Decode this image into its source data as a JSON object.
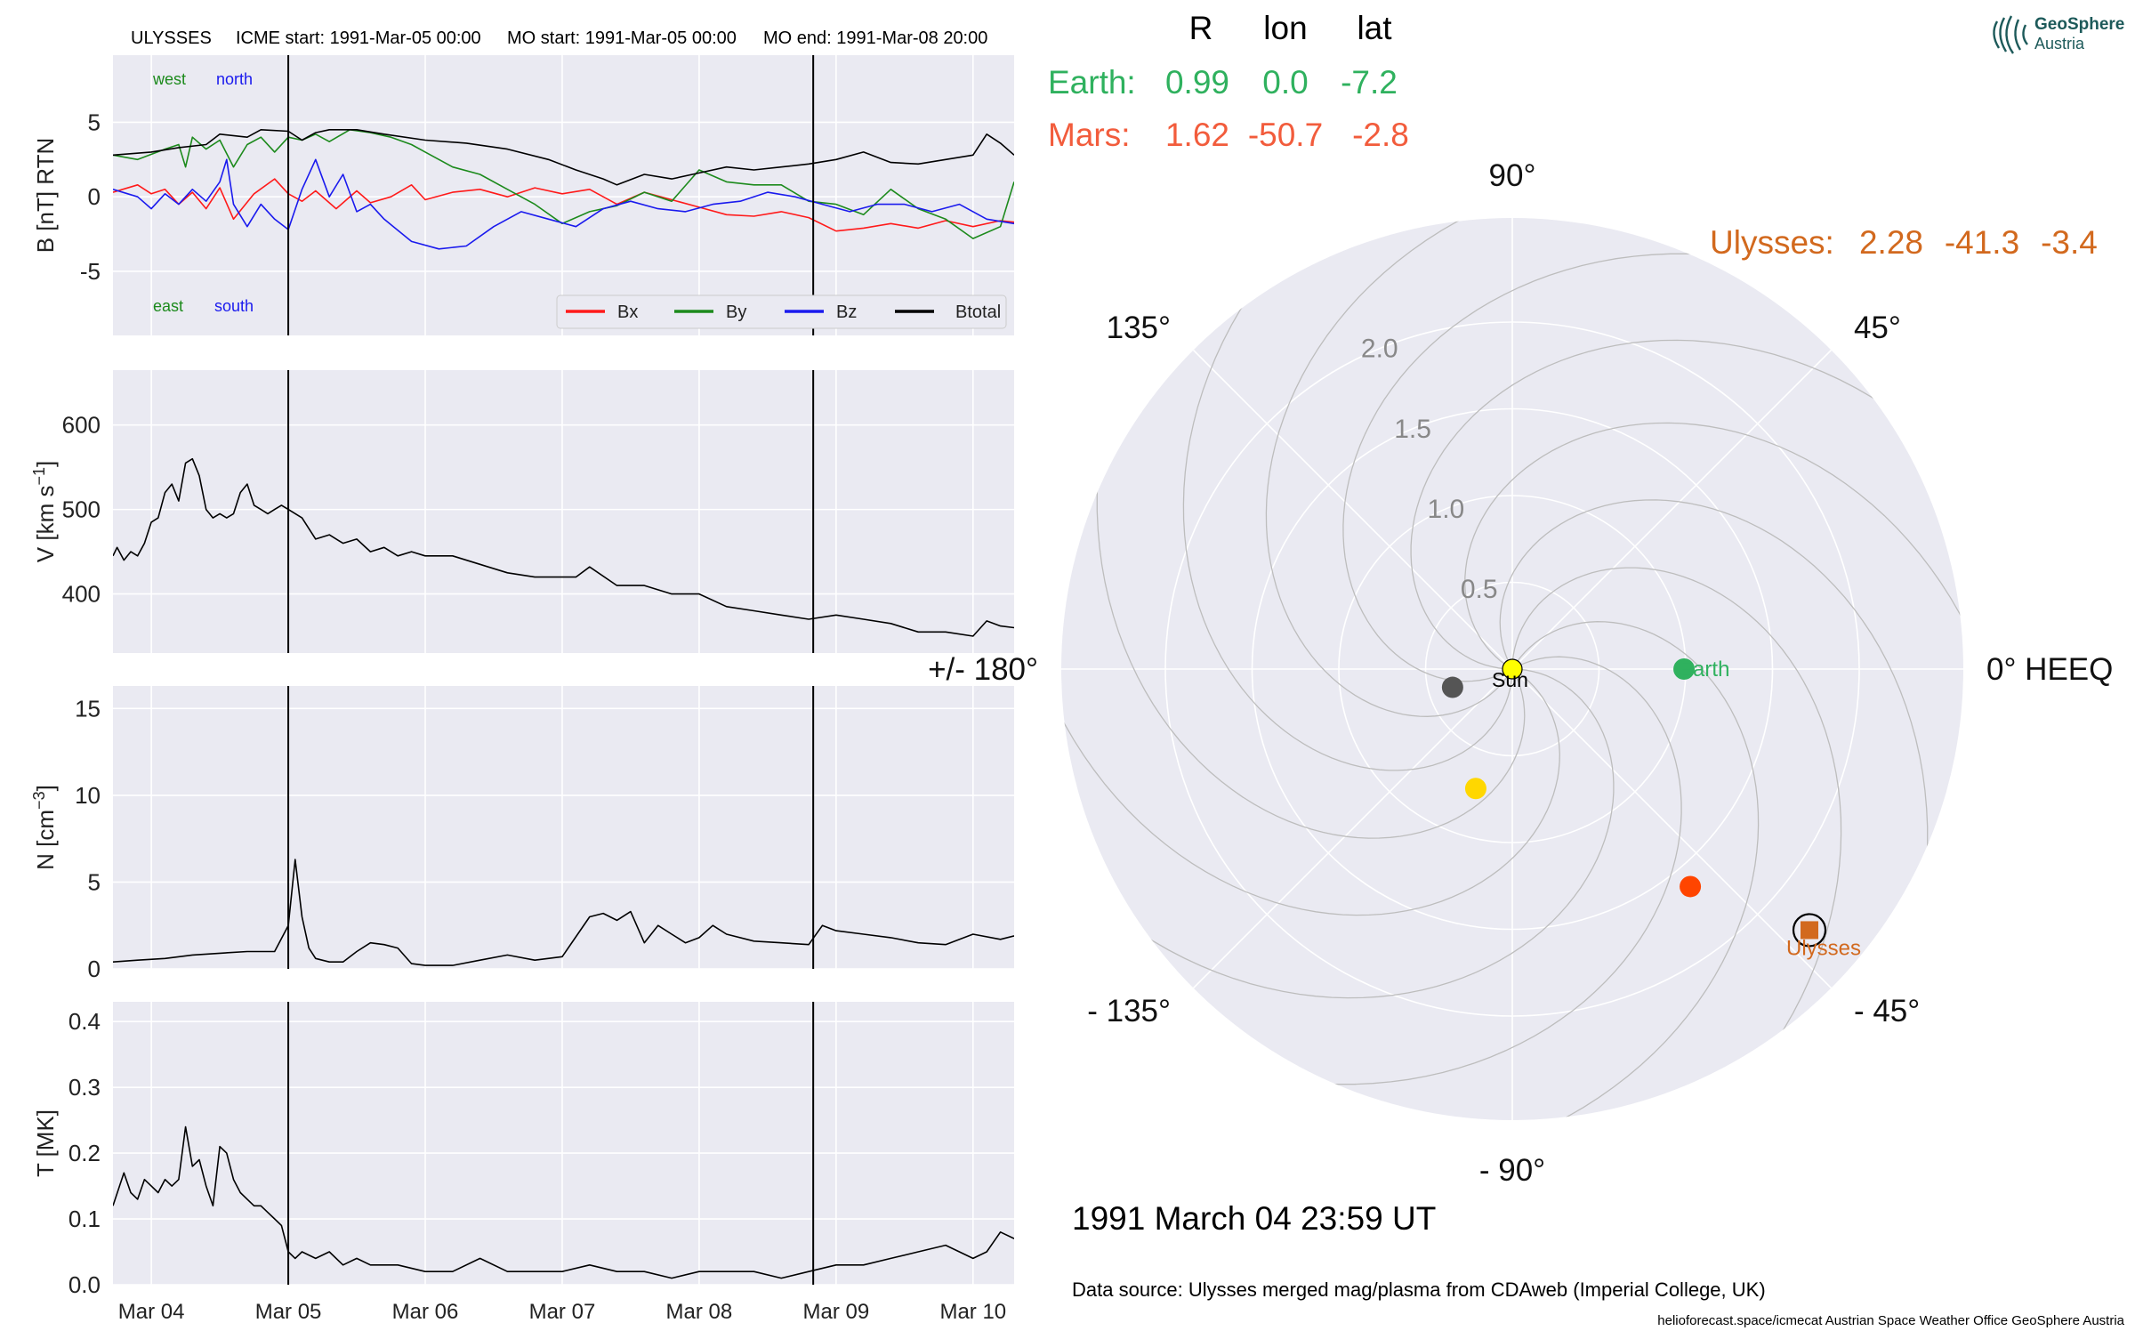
{
  "header": {
    "spacecraft": "ULYSSES",
    "icme_start": "ICME start: 1991-Mar-05 00:00",
    "mo_start": "MO start: 1991-Mar-05 00:00",
    "mo_end": "MO end: 1991-Mar-08 20:00"
  },
  "position_table": {
    "columns": [
      "R",
      "lon",
      "lat"
    ],
    "rows": [
      {
        "name": "Earth:",
        "R": "0.99",
        "lon": "0.0",
        "lat": "-7.2",
        "color": "#2fb15e"
      },
      {
        "name": "Mars:",
        "R": "1.62",
        "lon": "-50.7",
        "lat": "-2.8",
        "color": "#f25c3c"
      }
    ],
    "spacecraft_row": {
      "name": "Ulysses:",
      "R": "2.28",
      "lon": "-41.3",
      "lat": "-3.4",
      "color": "#d2691e"
    }
  },
  "logo": {
    "line1": "GeoSphere",
    "line2": "Austria"
  },
  "timestamp": "1991 March 04  23:59 UT",
  "data_source": "Data source: Ulysses merged mag/plasma from CDAweb (Imperial College, UK)",
  "footer": "helioforecast.space/icmecat   Austrian Space Weather Office   GeoSphere Austria",
  "colors": {
    "panel_bg": "#eaeaf2",
    "grid": "#ffffff",
    "bx": "#ff1a1a",
    "by": "#1c8a1c",
    "bz": "#1a1aee",
    "btotal": "#000000"
  },
  "chart_data": [
    {
      "type": "line",
      "ylabel": "B [nT] RTN",
      "yticks": [
        -5,
        0,
        5
      ],
      "ylim": [
        -9.3,
        9.5
      ],
      "xlim": [
        3.72,
        10.3
      ],
      "xticks": [
        4,
        5,
        6,
        7,
        8,
        9,
        10
      ],
      "xtick_labels": [
        "Mar 04",
        "Mar 05",
        "Mar 06",
        "Mar 07",
        "Mar 08",
        "Mar 09",
        "Mar 10"
      ],
      "vlines": [
        5.0,
        8.833
      ],
      "corner_labels": [
        {
          "text": "west",
          "color": "#1c8a1c",
          "pos": "top-left"
        },
        {
          "text": "north",
          "color": "#1a1aee",
          "pos": "top-left"
        },
        {
          "text": "east",
          "color": "#1c8a1c",
          "pos": "bottom-left"
        },
        {
          "text": "south",
          "color": "#1a1aee",
          "pos": "bottom-left"
        }
      ],
      "legend": [
        "Bx",
        "By",
        "Bz",
        "Btotal"
      ],
      "legend_position": "lower-right",
      "grid": true,
      "series": [
        {
          "name": "Bx",
          "color": "#ff1a1a",
          "x": [
            3.72,
            3.9,
            4.0,
            4.1,
            4.2,
            4.3,
            4.4,
            4.5,
            4.6,
            4.75,
            4.9,
            5.0,
            5.1,
            5.2,
            5.35,
            5.5,
            5.6,
            5.75,
            5.9,
            6.0,
            6.2,
            6.4,
            6.6,
            6.8,
            7.0,
            7.2,
            7.4,
            7.6,
            7.8,
            8.0,
            8.2,
            8.4,
            8.6,
            8.8,
            9.0,
            9.2,
            9.4,
            9.6,
            9.8,
            10.0,
            10.2,
            10.3
          ],
          "y": [
            0.3,
            0.8,
            0.2,
            0.5,
            -0.5,
            0.3,
            -0.8,
            0.6,
            -1.5,
            0.2,
            1.2,
            0.2,
            -0.3,
            0.4,
            -0.8,
            0.4,
            -0.4,
            0.0,
            0.8,
            -0.2,
            0.3,
            0.5,
            0.0,
            0.6,
            0.2,
            0.5,
            -0.5,
            0.3,
            -0.2,
            -0.7,
            -1.2,
            -1.3,
            -1.0,
            -1.4,
            -2.3,
            -2.1,
            -1.8,
            -2.1,
            -1.6,
            -2.0,
            -1.6,
            -1.7
          ]
        },
        {
          "name": "By",
          "color": "#1c8a1c",
          "x": [
            3.72,
            3.9,
            4.1,
            4.2,
            4.25,
            4.3,
            4.4,
            4.5,
            4.6,
            4.7,
            4.8,
            4.9,
            5.0,
            5.1,
            5.2,
            5.3,
            5.45,
            5.6,
            5.75,
            5.9,
            6.0,
            6.2,
            6.4,
            6.6,
            6.8,
            7.0,
            7.2,
            7.4,
            7.6,
            7.8,
            8.0,
            8.2,
            8.4,
            8.6,
            8.8,
            9.0,
            9.2,
            9.4,
            9.6,
            9.8,
            10.0,
            10.2,
            10.3
          ],
          "y": [
            2.8,
            2.5,
            3.2,
            3.5,
            2.0,
            4.0,
            3.2,
            3.8,
            2.0,
            3.5,
            4.0,
            3.0,
            4.0,
            3.8,
            4.2,
            3.7,
            4.5,
            4.3,
            4.0,
            3.5,
            3.0,
            2.0,
            1.5,
            0.5,
            -0.5,
            -1.8,
            -1.0,
            -0.6,
            0.3,
            -0.3,
            1.8,
            1.0,
            0.8,
            0.8,
            -0.3,
            -0.5,
            -1.2,
            0.5,
            -0.8,
            -1.5,
            -2.8,
            -2.0,
            1.0
          ]
        },
        {
          "name": "Bz",
          "color": "#1a1aee",
          "x": [
            3.72,
            3.9,
            4.0,
            4.1,
            4.2,
            4.3,
            4.4,
            4.5,
            4.55,
            4.6,
            4.7,
            4.8,
            4.9,
            5.0,
            5.1,
            5.2,
            5.3,
            5.4,
            5.5,
            5.6,
            5.7,
            5.9,
            6.1,
            6.3,
            6.5,
            6.7,
            6.9,
            7.1,
            7.3,
            7.5,
            7.7,
            7.9,
            8.1,
            8.3,
            8.5,
            8.7,
            8.9,
            9.1,
            9.3,
            9.5,
            9.7,
            9.9,
            10.1,
            10.3
          ],
          "y": [
            0.5,
            0.0,
            -0.8,
            0.2,
            -0.5,
            0.5,
            -0.3,
            1.0,
            2.5,
            -0.5,
            -2.0,
            -0.5,
            -1.5,
            -2.2,
            0.5,
            2.5,
            0.0,
            1.5,
            -1.0,
            -0.5,
            -1.5,
            -3.0,
            -3.5,
            -3.3,
            -2.0,
            -1.0,
            -1.5,
            -2.0,
            -0.8,
            -0.3,
            -0.8,
            -1.0,
            -0.5,
            -0.3,
            0.3,
            0.0,
            -0.5,
            -1.0,
            -0.5,
            -0.5,
            -1.0,
            -0.5,
            -1.5,
            -1.8
          ]
        },
        {
          "name": "Btotal",
          "color": "#000000",
          "x": [
            3.72,
            4.0,
            4.2,
            4.4,
            4.5,
            4.7,
            4.8,
            5.0,
            5.1,
            5.2,
            5.3,
            5.5,
            5.7,
            6.0,
            6.3,
            6.6,
            6.9,
            7.1,
            7.3,
            7.4,
            7.6,
            7.8,
            8.0,
            8.2,
            8.4,
            8.6,
            8.8,
            9.0,
            9.2,
            9.4,
            9.6,
            9.8,
            10.0,
            10.1,
            10.2,
            10.3
          ],
          "y": [
            2.8,
            3.0,
            3.3,
            3.5,
            4.2,
            4.0,
            4.5,
            4.4,
            3.8,
            4.3,
            4.5,
            4.5,
            4.2,
            3.8,
            3.6,
            3.2,
            2.5,
            1.8,
            1.2,
            0.8,
            1.5,
            1.2,
            1.6,
            2.0,
            1.8,
            2.0,
            2.2,
            2.5,
            3.0,
            2.3,
            2.2,
            2.5,
            2.8,
            4.2,
            3.6,
            2.8
          ]
        }
      ]
    },
    {
      "type": "line",
      "ylabel": "V [km s",
      "ylabel_superscript": "−1",
      "ylabel_close": "]",
      "yticks": [
        400,
        500,
        600
      ],
      "ylim": [
        330,
        665
      ],
      "xlim": [
        3.72,
        10.3
      ],
      "xticks": [
        4,
        5,
        6,
        7,
        8,
        9,
        10
      ],
      "vlines": [
        5.0,
        8.833
      ],
      "grid": true,
      "series": [
        {
          "name": "",
          "color": "#000000",
          "x": [
            3.72,
            3.75,
            3.8,
            3.85,
            3.9,
            3.95,
            4.0,
            4.05,
            4.1,
            4.15,
            4.2,
            4.25,
            4.3,
            4.35,
            4.4,
            4.45,
            4.5,
            4.55,
            4.6,
            4.65,
            4.7,
            4.75,
            4.8,
            4.85,
            4.9,
            4.95,
            5.0,
            5.1,
            5.2,
            5.3,
            5.4,
            5.5,
            5.6,
            5.7,
            5.8,
            5.9,
            6.0,
            6.2,
            6.4,
            6.6,
            6.8,
            7.0,
            7.1,
            7.2,
            7.4,
            7.6,
            7.8,
            8.0,
            8.2,
            8.4,
            8.6,
            8.8,
            9.0,
            9.2,
            9.4,
            9.6,
            9.8,
            10.0,
            10.1,
            10.2,
            10.3
          ],
          "y": [
            445,
            455,
            440,
            450,
            445,
            460,
            485,
            490,
            520,
            530,
            510,
            555,
            560,
            540,
            500,
            490,
            495,
            490,
            495,
            520,
            530,
            505,
            500,
            495,
            500,
            505,
            500,
            490,
            465,
            470,
            460,
            465,
            450,
            455,
            445,
            450,
            445,
            445,
            435,
            425,
            420,
            420,
            420,
            432,
            410,
            410,
            400,
            400,
            385,
            380,
            375,
            370,
            375,
            370,
            365,
            355,
            355,
            350,
            368,
            362,
            360
          ]
        }
      ]
    },
    {
      "type": "line",
      "ylabel": "N [cm",
      "ylabel_superscript": "−3",
      "ylabel_close": "]",
      "yticks": [
        0,
        5,
        10,
        15
      ],
      "ylim": [
        0,
        16.3
      ],
      "xlim": [
        3.72,
        10.3
      ],
      "xticks": [
        4,
        5,
        6,
        7,
        8,
        9,
        10
      ],
      "vlines": [
        5.0,
        8.833
      ],
      "grid": true,
      "series": [
        {
          "name": "",
          "color": "#000000",
          "x": [
            3.72,
            3.9,
            4.1,
            4.3,
            4.5,
            4.7,
            4.9,
            5.0,
            5.05,
            5.1,
            5.15,
            5.2,
            5.3,
            5.4,
            5.5,
            5.6,
            5.7,
            5.8,
            5.9,
            6.0,
            6.2,
            6.4,
            6.6,
            6.8,
            7.0,
            7.2,
            7.3,
            7.4,
            7.5,
            7.6,
            7.7,
            7.8,
            7.9,
            8.0,
            8.1,
            8.2,
            8.4,
            8.6,
            8.8,
            8.9,
            9.0,
            9.2,
            9.4,
            9.6,
            9.8,
            10.0,
            10.2,
            10.3
          ],
          "y": [
            0.4,
            0.5,
            0.6,
            0.8,
            0.9,
            1.0,
            1.0,
            2.5,
            6.3,
            3.0,
            1.2,
            0.6,
            0.4,
            0.4,
            1.0,
            1.5,
            1.4,
            1.2,
            0.3,
            0.2,
            0.2,
            0.5,
            0.8,
            0.5,
            0.7,
            3.0,
            3.2,
            2.8,
            3.3,
            1.5,
            2.5,
            2.0,
            1.5,
            1.8,
            2.5,
            2.0,
            1.6,
            1.5,
            1.4,
            2.5,
            2.2,
            2.0,
            1.8,
            1.5,
            1.4,
            2.0,
            1.7,
            1.9
          ]
        }
      ]
    },
    {
      "type": "line",
      "ylabel": "T [MK]",
      "yticks": [
        0.0,
        0.1,
        0.2,
        0.3,
        0.4
      ],
      "ylim": [
        0,
        0.43
      ],
      "xlim": [
        3.72,
        10.3
      ],
      "xticks": [
        4,
        5,
        6,
        7,
        8,
        9,
        10
      ],
      "xtick_labels": [
        "Mar 04",
        "Mar 05",
        "Mar 06",
        "Mar 07",
        "Mar 08",
        "Mar 09",
        "Mar 10"
      ],
      "vlines": [
        5.0,
        8.833
      ],
      "grid": true,
      "series": [
        {
          "name": "",
          "color": "#000000",
          "x": [
            3.72,
            3.8,
            3.85,
            3.9,
            3.95,
            4.0,
            4.05,
            4.1,
            4.15,
            4.2,
            4.25,
            4.3,
            4.35,
            4.4,
            4.45,
            4.5,
            4.55,
            4.6,
            4.65,
            4.7,
            4.75,
            4.8,
            4.85,
            4.9,
            4.95,
            5.0,
            5.05,
            5.1,
            5.2,
            5.3,
            5.4,
            5.5,
            5.6,
            5.8,
            6.0,
            6.2,
            6.4,
            6.6,
            6.8,
            7.0,
            7.2,
            7.4,
            7.6,
            7.8,
            8.0,
            8.2,
            8.4,
            8.6,
            8.8,
            9.0,
            9.2,
            9.4,
            9.6,
            9.8,
            10.0,
            10.1,
            10.2,
            10.3
          ],
          "y": [
            0.12,
            0.17,
            0.14,
            0.13,
            0.16,
            0.15,
            0.14,
            0.16,
            0.15,
            0.16,
            0.24,
            0.18,
            0.19,
            0.15,
            0.12,
            0.21,
            0.2,
            0.16,
            0.14,
            0.13,
            0.12,
            0.12,
            0.11,
            0.1,
            0.09,
            0.05,
            0.04,
            0.05,
            0.04,
            0.05,
            0.03,
            0.04,
            0.03,
            0.03,
            0.02,
            0.02,
            0.04,
            0.02,
            0.02,
            0.02,
            0.03,
            0.02,
            0.02,
            0.01,
            0.02,
            0.02,
            0.02,
            0.01,
            0.02,
            0.03,
            0.03,
            0.04,
            0.05,
            0.06,
            0.04,
            0.05,
            0.08,
            0.07
          ]
        }
      ]
    },
    {
      "type": "scatter",
      "projection": "polar",
      "angle_labels": [
        {
          "deg": 0,
          "text": "0° HEEQ"
        },
        {
          "deg": 45,
          "text": "45°"
        },
        {
          "deg": 90,
          "text": "90°"
        },
        {
          "deg": 135,
          "text": "135°"
        },
        {
          "deg": 180,
          "text": "+/- 180°"
        },
        {
          "deg": -135,
          "text": "- 135°"
        },
        {
          "deg": -90,
          "text": "- 90°"
        },
        {
          "deg": -45,
          "text": "- 45°"
        }
      ],
      "r_ticks": [
        0.5,
        1.0,
        1.5,
        2.0
      ],
      "r_tick_labels": [
        "0.5",
        "1.0",
        "1.5",
        "2.0"
      ],
      "rlim": [
        0,
        2.6
      ],
      "spiral_count": 12,
      "objects": [
        {
          "name": "Sun",
          "r": 0.0,
          "lon": 0.0,
          "color": "#ffff00",
          "marker": "circle",
          "label": "Sun"
        },
        {
          "name": "Earth",
          "r": 0.99,
          "lon": 0.0,
          "color": "#2fb15e",
          "marker": "circle",
          "label": "Earth"
        },
        {
          "name": "Mars",
          "r": 1.62,
          "lon": -50.7,
          "color": "#ff4500",
          "marker": "circle",
          "label": ""
        },
        {
          "name": "Venus",
          "r": 0.72,
          "lon": -107.0,
          "color": "#ffd700",
          "marker": "circle",
          "label": ""
        },
        {
          "name": "Mercury",
          "r": 0.36,
          "lon": -163.0,
          "color": "#555555",
          "marker": "circle",
          "label": ""
        },
        {
          "name": "Ulysses",
          "r": 2.28,
          "lon": -41.3,
          "color": "#d2691e",
          "marker": "square",
          "label": "Ulysses"
        }
      ]
    }
  ]
}
